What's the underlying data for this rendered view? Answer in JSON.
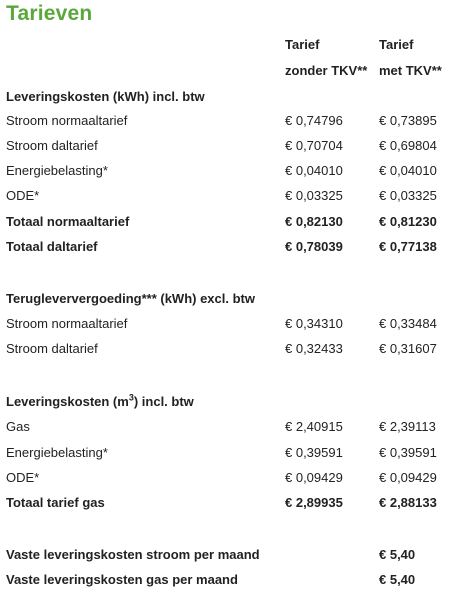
{
  "title": "Tarieven",
  "header": {
    "col1_line1": "Tarief",
    "col1_line2": "zonder TKV**",
    "col2_line1": "Tarief",
    "col2_line2": "met TKV**"
  },
  "sections": {
    "levering": {
      "heading": "Leveringskosten (kWh) incl. btw",
      "rows": [
        {
          "label": "Stroom normaaltarief",
          "zonder": "€ 0,74796",
          "met": "€ 0,73895"
        },
        {
          "label": "Stroom daltarief",
          "zonder": "€ 0,70704",
          "met": "€ 0,69804"
        },
        {
          "label": "Energiebelasting*",
          "zonder": "€ 0,04010",
          "met": "€ 0,04010"
        },
        {
          "label": "ODE*",
          "zonder": "€ 0,03325",
          "met": "€ 0,03325"
        }
      ],
      "totals": [
        {
          "label": "Totaal normaaltarief",
          "zonder": "€ 0,82130",
          "met": "€ 0,81230"
        },
        {
          "label": "Totaal daltarief",
          "zonder": "€ 0,78039",
          "met": "€ 0,77138"
        }
      ]
    },
    "teruglever": {
      "heading": "Terugleververgoeding*** (kWh) excl. btw",
      "rows": [
        {
          "label": "Stroom normaaltarief",
          "zonder": "€ 0,34310",
          "met": "€ 0,33484"
        },
        {
          "label": "Stroom daltarief",
          "zonder": "€ 0,32433",
          "met": "€ 0,31607"
        }
      ]
    },
    "gas": {
      "heading_pre": "Leveringskosten (m",
      "heading_sup": "3",
      "heading_post": ") incl. btw",
      "rows": [
        {
          "label": "Gas",
          "zonder": "€ 2,40915",
          "met": "€ 2,39113"
        },
        {
          "label": "Energiebelasting*",
          "zonder": "€ 0,39591",
          "met": "€ 0,39591"
        },
        {
          "label": "ODE*",
          "zonder": "€ 0,09429",
          "met": "€ 0,09429"
        }
      ],
      "total": {
        "label": "Totaal tarief gas",
        "zonder": "€ 2,89935",
        "met": "€ 2,88133"
      }
    },
    "vast": {
      "rows": [
        {
          "label": "Vaste leveringskosten stroom per maand",
          "met": "€ 5,40"
        },
        {
          "label": "Vaste leveringskosten gas per maand",
          "met": "€ 5,40"
        }
      ]
    }
  },
  "colors": {
    "title": "#5aa73a",
    "text": "#222222"
  }
}
